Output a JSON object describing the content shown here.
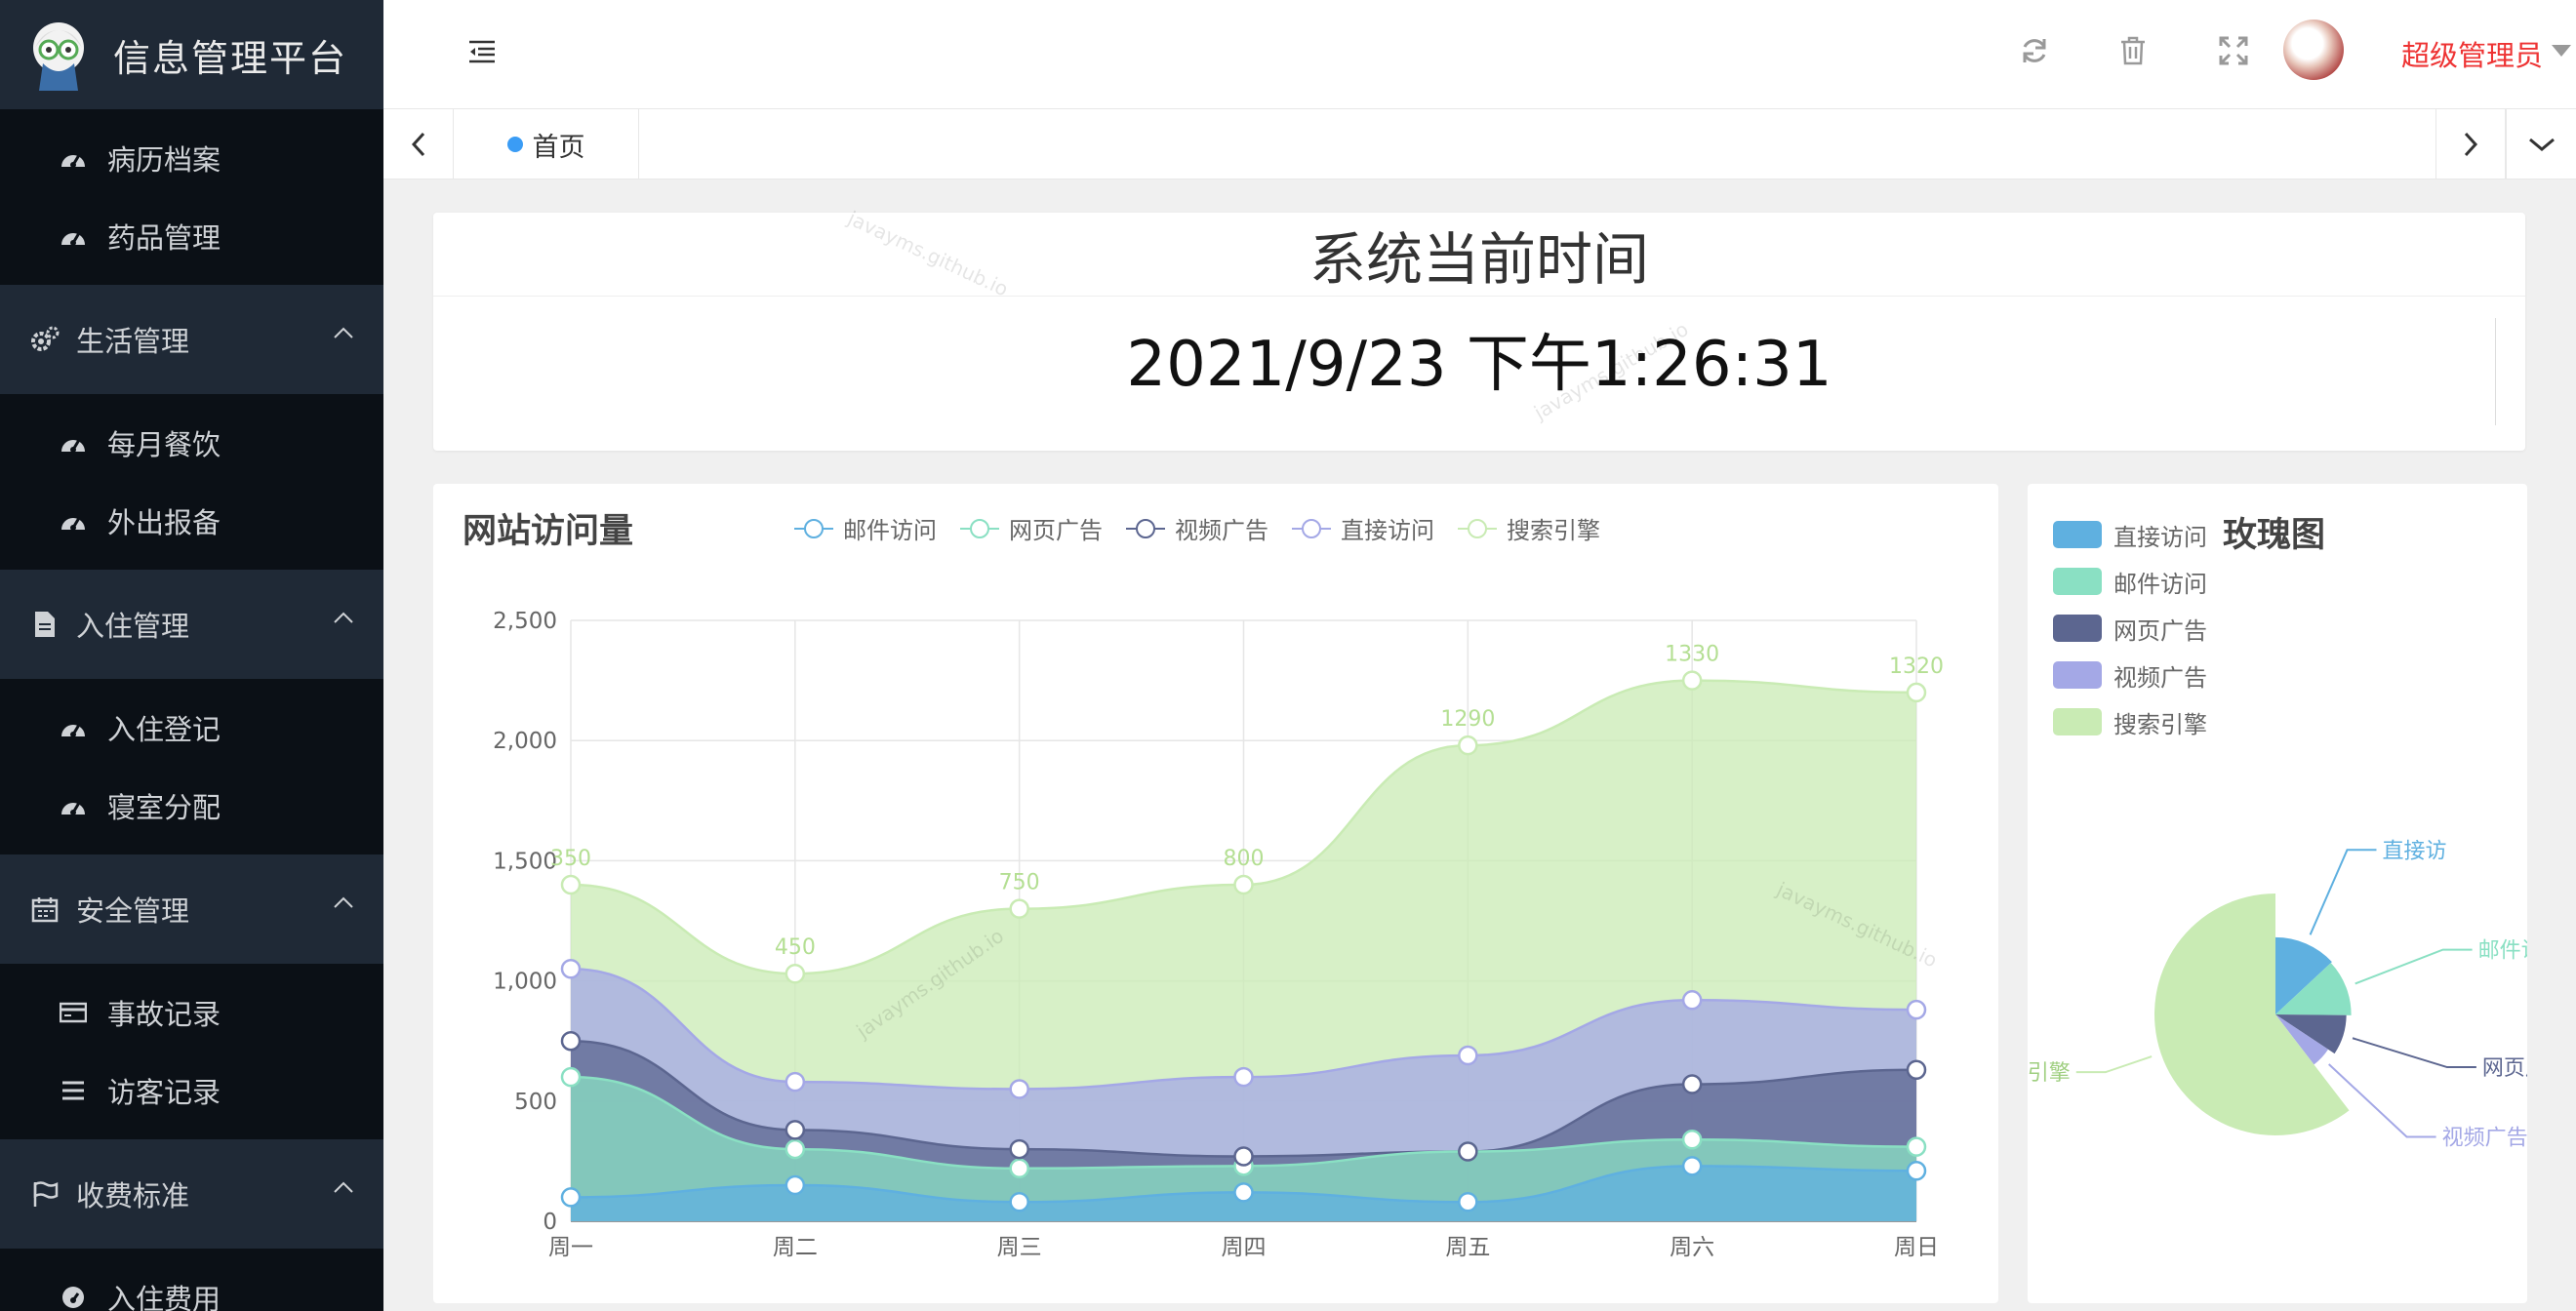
{
  "brand": {
    "title": "信息管理平台"
  },
  "sidebar": {
    "top_items": [
      {
        "label": "病历档案"
      },
      {
        "label": "药品管理"
      }
    ],
    "groups": [
      {
        "label": "生活管理",
        "items": [
          {
            "label": "每月餐饮"
          },
          {
            "label": "外出报备"
          }
        ]
      },
      {
        "label": "入住管理",
        "items": [
          {
            "label": "入住登记"
          },
          {
            "label": "寝室分配"
          }
        ]
      },
      {
        "label": "安全管理",
        "items": [
          {
            "label": "事故记录"
          },
          {
            "label": "访客记录"
          }
        ]
      },
      {
        "label": "收费标准",
        "items": [
          {
            "label": "入住费用"
          }
        ]
      }
    ]
  },
  "header": {
    "user_name": "超级管理员"
  },
  "tabs": [
    {
      "label": "首页"
    }
  ],
  "time_card": {
    "title": "系统当前时间",
    "datetime": "2021/9/23 下午1:26:31"
  },
  "watermark": "javayms.github.io",
  "chart_data": [
    {
      "type": "area",
      "title": "网站访问量",
      "stacked": true,
      "smooth": true,
      "categories": [
        "周一",
        "周二",
        "周三",
        "周四",
        "周五",
        "周六",
        "周日"
      ],
      "ylim": [
        0,
        2500
      ],
      "yticks": [
        0,
        500,
        1000,
        1500,
        2000,
        2500
      ],
      "ytick_labels": [
        "0",
        "500",
        "1,000",
        "1,500",
        "2,000",
        "2,500"
      ],
      "grid": true,
      "legend_position": "top",
      "legend": [
        "邮件访问",
        "网页广告",
        "视频广告",
        "直接访问",
        "搜索引擎"
      ],
      "series": [
        {
          "name": "邮件访问",
          "color": "#5fb0e0",
          "values": [
            100,
            150,
            80,
            120,
            80,
            230,
            210
          ]
        },
        {
          "name": "网页广告",
          "color": "#8ae0c3",
          "values": [
            500,
            150,
            140,
            110,
            210,
            110,
            100
          ]
        },
        {
          "name": "视频广告",
          "color": "#5c6690",
          "values": [
            150,
            80,
            80,
            40,
            0,
            230,
            320
          ]
        },
        {
          "name": "直接访问",
          "color": "#a4a8e6",
          "values": [
            300,
            200,
            250,
            330,
            400,
            350,
            250
          ]
        },
        {
          "name": "搜索引擎",
          "color": "#c9ebb4",
          "values": [
            350,
            450,
            750,
            800,
            1290,
            1330,
            1320
          ]
        }
      ],
      "top_labels": [
        "350",
        "450",
        "750",
        "800",
        "1290",
        "1330",
        "1320"
      ]
    },
    {
      "type": "pie",
      "title": "玫瑰图",
      "rose": true,
      "legend_position": "top-left",
      "legend": [
        "直接访问",
        "邮件访问",
        "网页广告",
        "视频广告",
        "搜索引擎"
      ],
      "slices": [
        {
          "name": "直接访问",
          "value": 335,
          "color": "#5fb0e0",
          "label": "直接访"
        },
        {
          "name": "邮件访问",
          "value": 310,
          "color": "#8ae0c3",
          "label": "邮件访"
        },
        {
          "name": "网页广告",
          "value": 234,
          "color": "#5c6690",
          "label": "网页广告"
        },
        {
          "name": "视频广告",
          "value": 135,
          "color": "#a4a8e6",
          "label": "视频广告"
        },
        {
          "name": "搜索引擎",
          "value": 1548,
          "color": "#c9ebb4",
          "label": "引擎"
        }
      ]
    }
  ]
}
